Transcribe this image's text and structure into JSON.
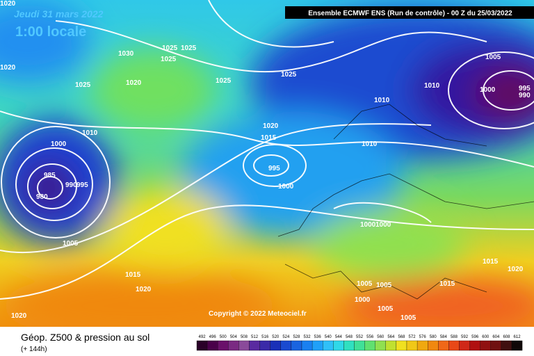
{
  "header": {
    "date": "Jeudi 31 mars 2022",
    "time": "1:00 locale",
    "run": "Ensemble ECMWF ENS  (Run de contrôle)  - 00 Z du 25/03/2022"
  },
  "isobar_labels": [
    1020,
    1020,
    1030,
    1025,
    1025,
    1025,
    1025,
    1020,
    1025,
    1025,
    1005,
    1010,
    1000,
    995,
    990,
    1010,
    1010,
    1020,
    1015,
    1000,
    1010,
    995,
    985,
    990,
    995,
    980,
    1000,
    1000,
    1000,
    1005,
    1015,
    1020,
    1015,
    1015,
    1020,
    1005,
    1005,
    1000,
    1005,
    1005,
    1020
  ],
  "copyright": "Copyright © 2022 Meteociel.fr",
  "footer": {
    "title": "Géop. Z500 & pression au sol",
    "lead": "(+ 144h)"
  },
  "colorbar": [
    492,
    496,
    500,
    504,
    508,
    512,
    516,
    520,
    524,
    528,
    532,
    536,
    540,
    544,
    548,
    552,
    556,
    560,
    564,
    568,
    572,
    576,
    580,
    584,
    588,
    592,
    596,
    600,
    604,
    608,
    612
  ]
}
